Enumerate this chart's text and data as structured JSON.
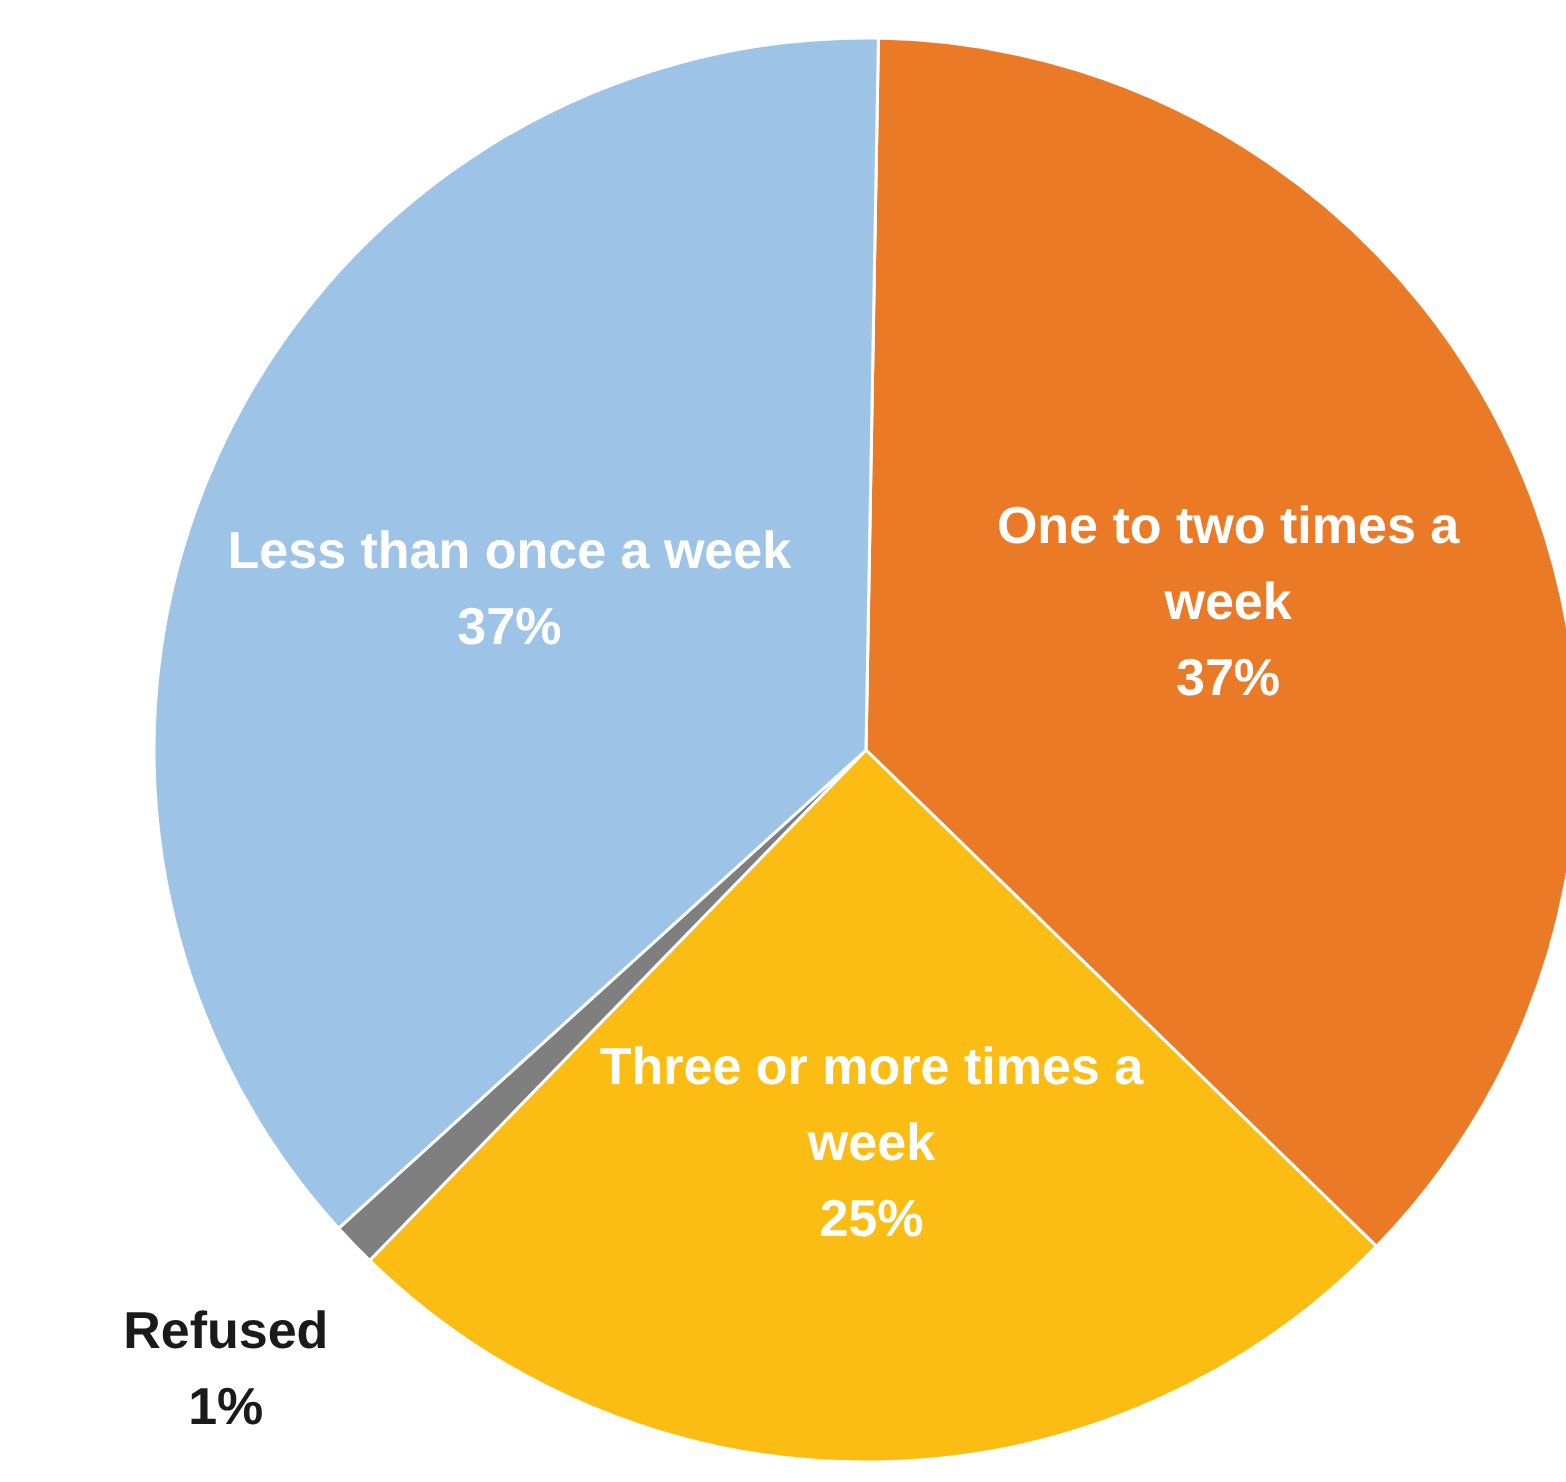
{
  "chart_data": {
    "type": "pie",
    "categories": [
      "One to two times a week",
      "Three or more times a week",
      "Refused",
      "Less than once a week"
    ],
    "values": [
      37,
      25,
      1,
      37
    ],
    "colors": [
      "#ea7a26",
      "#fbbc14",
      "#7f7f7f",
      "#9dc3e6"
    ],
    "value_labels": [
      "37%",
      "25%",
      "1%",
      "37%"
    ]
  }
}
